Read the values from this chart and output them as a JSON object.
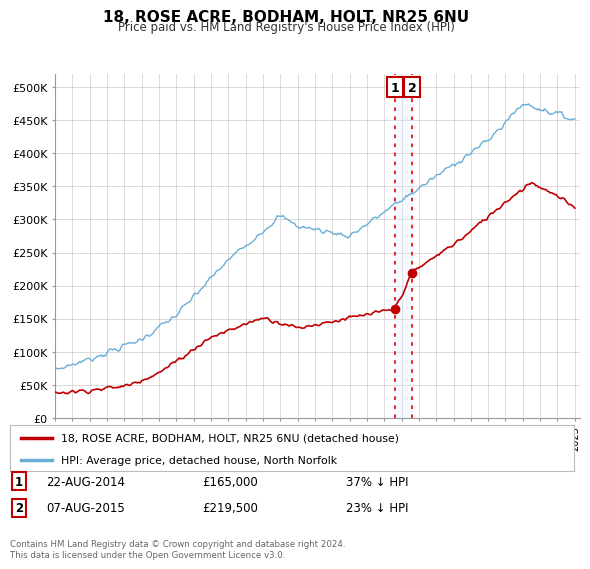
{
  "title": "18, ROSE ACRE, BODHAM, HOLT, NR25 6NU",
  "subtitle": "Price paid vs. HM Land Registry's House Price Index (HPI)",
  "ylim": [
    0,
    520000
  ],
  "yticks": [
    0,
    50000,
    100000,
    150000,
    200000,
    250000,
    300000,
    350000,
    400000,
    450000,
    500000
  ],
  "ytick_labels": [
    "£0",
    "£50K",
    "£100K",
    "£150K",
    "£200K",
    "£250K",
    "£300K",
    "£350K",
    "£400K",
    "£450K",
    "£500K"
  ],
  "xlim_start": 1995.0,
  "xlim_end": 2025.3,
  "hpi_color": "#6aaed6",
  "price_color": "#c00000",
  "vline_color": "#ee1111",
  "legend_label_red": "18, ROSE ACRE, BODHAM, HOLT, NR25 6NU (detached house)",
  "legend_label_blue": "HPI: Average price, detached house, North Norfolk",
  "transaction1_date": "22-AUG-2014",
  "transaction1_price": "£165,000",
  "transaction1_note": "37% ↓ HPI",
  "transaction1_x": 2014.63,
  "transaction1_y": 165000,
  "transaction2_date": "07-AUG-2015",
  "transaction2_price": "£219,500",
  "transaction2_note": "23% ↓ HPI",
  "transaction2_x": 2015.6,
  "transaction2_y": 219500,
  "footer": "Contains HM Land Registry data © Crown copyright and database right 2024.\nThis data is licensed under the Open Government Licence v3.0.",
  "background_color": "#ffffff",
  "grid_color": "#cccccc",
  "shade_color": "#ddeeff"
}
